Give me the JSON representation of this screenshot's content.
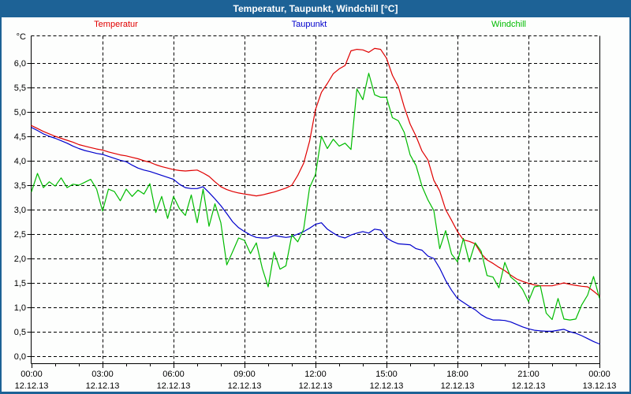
{
  "window": {
    "title": "Temperatur, Taupunkt, Windchill [°C]"
  },
  "colors": {
    "titlebar": "#1d6296",
    "frame": "#1d6296",
    "background": "#fdfefd",
    "grid": "#000000",
    "axis": "#000000",
    "temperatur": "#e00000",
    "taupunkt": "#0000cc",
    "windchill": "#00bb00"
  },
  "legend": [
    {
      "label": "Temperatur",
      "color": "#e00000"
    },
    {
      "label": "Taupunkt",
      "color": "#0000cc"
    },
    {
      "label": "Windchill",
      "color": "#00bb00"
    }
  ],
  "axes": {
    "y_unit": "°C",
    "y_tick_labels": [
      "0,0",
      "0,5",
      "1,0",
      "1,5",
      "2,0",
      "2,5",
      "3,0",
      "3,5",
      "4,0",
      "4,5",
      "5,0",
      "5,5",
      "6,0"
    ],
    "x_tick_times": [
      "00:00",
      "03:00",
      "06:00",
      "09:00",
      "12:00",
      "15:00",
      "18:00",
      "21:00",
      "00:00"
    ],
    "x_tick_dates": [
      "12.12.13",
      "12.12.13",
      "12.12.13",
      "12.12.13",
      "12.12.13",
      "12.12.13",
      "12.12.13",
      "12.12.13",
      "13.12.13"
    ]
  },
  "chart_data": {
    "type": "line",
    "title": "Temperatur, Taupunkt, Windchill [°C]",
    "xlabel": "",
    "ylabel": "°C",
    "xlim_hours": [
      0,
      24
    ],
    "ylim": [
      -0.15,
      6.56
    ],
    "grid": "dashed",
    "legend_position": "top",
    "x_start_hour": 0,
    "x_step_hours": 0.25,
    "n_points": 97,
    "x_ticks": [
      {
        "hour": 0,
        "time": "00:00",
        "date": "12.12.13"
      },
      {
        "hour": 3,
        "time": "03:00",
        "date": "12.12.13"
      },
      {
        "hour": 6,
        "time": "06:00",
        "date": "12.12.13"
      },
      {
        "hour": 9,
        "time": "09:00",
        "date": "12.12.13"
      },
      {
        "hour": 12,
        "time": "12:00",
        "date": "12.12.13"
      },
      {
        "hour": 15,
        "time": "15:00",
        "date": "12.12.13"
      },
      {
        "hour": 18,
        "time": "18:00",
        "date": "12.12.13"
      },
      {
        "hour": 21,
        "time": "21:00",
        "date": "12.12.13"
      },
      {
        "hour": 24,
        "time": "00:00",
        "date": "13.12.13"
      }
    ],
    "y_ticks": [
      {
        "value": 0.0,
        "label": "0,0"
      },
      {
        "value": 0.5,
        "label": "0,5"
      },
      {
        "value": 1.0,
        "label": "1,0"
      },
      {
        "value": 1.5,
        "label": "1,5"
      },
      {
        "value": 2.0,
        "label": "2,0"
      },
      {
        "value": 2.5,
        "label": "2,5"
      },
      {
        "value": 3.0,
        "label": "3,0"
      },
      {
        "value": 3.5,
        "label": "3,5"
      },
      {
        "value": 4.0,
        "label": "4,0"
      },
      {
        "value": 4.5,
        "label": "4,5"
      },
      {
        "value": 5.0,
        "label": "5,0"
      },
      {
        "value": 5.5,
        "label": "5,5"
      },
      {
        "value": 6.0,
        "label": "6,0"
      }
    ],
    "series": [
      {
        "name": "Temperatur",
        "color": "#e00000",
        "values": [
          4.72,
          4.66,
          4.6,
          4.55,
          4.5,
          4.46,
          4.42,
          4.38,
          4.33,
          4.3,
          4.27,
          4.24,
          4.22,
          4.18,
          4.15,
          4.12,
          4.1,
          4.07,
          4.04,
          4.0,
          3.97,
          3.92,
          3.88,
          3.85,
          3.82,
          3.8,
          3.79,
          3.8,
          3.81,
          3.75,
          3.68,
          3.57,
          3.47,
          3.41,
          3.37,
          3.34,
          3.32,
          3.3,
          3.28,
          3.3,
          3.33,
          3.36,
          3.4,
          3.44,
          3.5,
          3.7,
          3.95,
          4.4,
          5.05,
          5.4,
          5.58,
          5.78,
          5.88,
          5.95,
          6.25,
          6.28,
          6.27,
          6.22,
          6.3,
          6.28,
          6.1,
          5.75,
          5.52,
          5.1,
          4.75,
          4.5,
          4.2,
          4.02,
          3.6,
          3.38,
          3.0,
          2.78,
          2.55,
          2.38,
          2.35,
          2.3,
          2.1,
          1.97,
          1.9,
          1.82,
          1.75,
          1.66,
          1.58,
          1.53,
          1.49,
          1.46,
          1.44,
          1.44,
          1.44,
          1.47,
          1.5,
          1.47,
          1.45,
          1.43,
          1.42,
          1.33,
          1.23
        ]
      },
      {
        "name": "Taupunkt",
        "color": "#0000cc",
        "values": [
          4.68,
          4.62,
          4.55,
          4.5,
          4.46,
          4.41,
          4.36,
          4.3,
          4.25,
          4.21,
          4.18,
          4.15,
          4.13,
          4.09,
          4.05,
          4.01,
          3.98,
          3.91,
          3.85,
          3.81,
          3.78,
          3.74,
          3.7,
          3.66,
          3.62,
          3.52,
          3.45,
          3.43,
          3.43,
          3.47,
          3.35,
          3.22,
          3.08,
          2.92,
          2.75,
          2.63,
          2.55,
          2.48,
          2.43,
          2.42,
          2.42,
          2.47,
          2.45,
          2.43,
          2.45,
          2.5,
          2.55,
          2.62,
          2.7,
          2.73,
          2.6,
          2.52,
          2.45,
          2.42,
          2.48,
          2.52,
          2.55,
          2.52,
          2.6,
          2.58,
          2.42,
          2.35,
          2.3,
          2.29,
          2.28,
          2.2,
          2.17,
          2.05,
          2.0,
          1.8,
          1.55,
          1.35,
          1.18,
          1.1,
          1.02,
          0.95,
          0.85,
          0.78,
          0.74,
          0.74,
          0.73,
          0.7,
          0.65,
          0.6,
          0.56,
          0.53,
          0.52,
          0.51,
          0.51,
          0.53,
          0.55,
          0.5,
          0.47,
          0.42,
          0.36,
          0.3,
          0.25
        ]
      },
      {
        "name": "Windchill",
        "color": "#00bb00",
        "values": [
          3.37,
          3.74,
          3.45,
          3.57,
          3.48,
          3.65,
          3.45,
          3.52,
          3.5,
          3.56,
          3.62,
          3.42,
          2.97,
          3.42,
          3.37,
          3.18,
          3.42,
          3.27,
          3.4,
          3.32,
          3.53,
          2.94,
          3.27,
          2.82,
          3.27,
          3.02,
          2.88,
          3.3,
          2.73,
          3.42,
          2.66,
          3.12,
          2.73,
          1.87,
          2.14,
          2.42,
          2.37,
          2.1,
          2.32,
          1.8,
          1.42,
          2.13,
          1.78,
          1.85,
          2.48,
          2.34,
          2.6,
          3.45,
          3.72,
          4.5,
          4.25,
          4.44,
          4.3,
          4.36,
          4.23,
          5.47,
          5.25,
          5.79,
          5.35,
          5.3,
          5.3,
          4.88,
          4.82,
          4.58,
          4.12,
          3.9,
          3.48,
          3.2,
          2.98,
          2.2,
          2.57,
          2.09,
          1.93,
          2.41,
          1.93,
          2.32,
          2.15,
          1.65,
          1.62,
          1.4,
          1.92,
          1.62,
          1.52,
          1.37,
          1.12,
          1.42,
          1.44,
          0.88,
          0.75,
          1.18,
          0.76,
          0.74,
          0.76,
          1.05,
          1.25,
          1.63,
          1.19
        ]
      }
    ]
  }
}
